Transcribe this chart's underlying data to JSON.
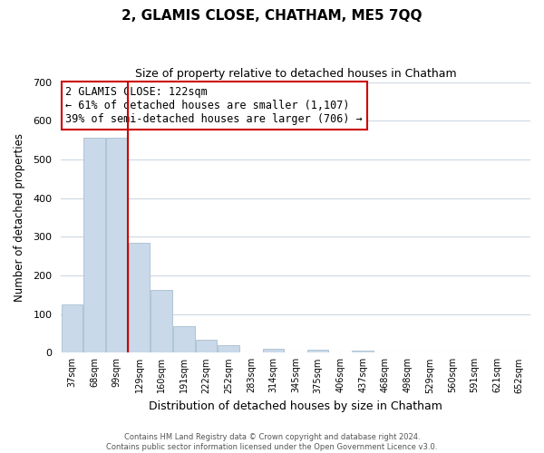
{
  "title": "2, GLAMIS CLOSE, CHATHAM, ME5 7QQ",
  "subtitle": "Size of property relative to detached houses in Chatham",
  "xlabel": "Distribution of detached houses by size in Chatham",
  "ylabel": "Number of detached properties",
  "bar_labels": [
    "37sqm",
    "68sqm",
    "99sqm",
    "129sqm",
    "160sqm",
    "191sqm",
    "222sqm",
    "252sqm",
    "283sqm",
    "314sqm",
    "345sqm",
    "375sqm",
    "406sqm",
    "437sqm",
    "468sqm",
    "498sqm",
    "529sqm",
    "560sqm",
    "591sqm",
    "621sqm",
    "652sqm"
  ],
  "bar_values": [
    125,
    555,
    555,
    285,
    163,
    68,
    33,
    20,
    0,
    10,
    0,
    8,
    0,
    5,
    0,
    0,
    0,
    0,
    0,
    0,
    0
  ],
  "bar_color": "#c9d9e9",
  "bar_edge_color": "#a8bece",
  "vline_color": "#cc0000",
  "annotation_title": "2 GLAMIS CLOSE: 122sqm",
  "annotation_line1": "← 61% of detached houses are smaller (1,107)",
  "annotation_line2": "39% of semi-detached houses are larger (706) →",
  "annotation_box_color": "#ffffff",
  "annotation_box_edge_color": "#cc0000",
  "ylim": [
    0,
    700
  ],
  "yticks": [
    0,
    100,
    200,
    300,
    400,
    500,
    600,
    700
  ],
  "footer1": "Contains HM Land Registry data © Crown copyright and database right 2024.",
  "footer2": "Contains public sector information licensed under the Open Government Licence v3.0.",
  "bg_color": "#ffffff",
  "grid_color": "#cdd8e3",
  "figsize": [
    6.0,
    5.0
  ],
  "dpi": 100
}
